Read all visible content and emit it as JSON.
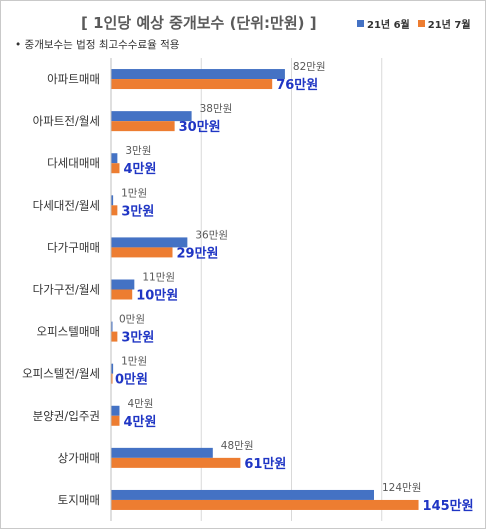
{
  "chart_data": {
    "type": "bar",
    "orientation": "horizontal",
    "title": "[ 1인당 예상 중개보수 (단위:만원) ]",
    "note": "중개보수는 법정 최고수수료율 적용",
    "categories": [
      "아파트매매",
      "아파트전/월세",
      "다세대매매",
      "다세대전/월세",
      "다가구매매",
      "다가구전/월세",
      "오피스텔매매",
      "오피스텔전/월세",
      "분양권/입주권",
      "상가매매",
      "토지매매"
    ],
    "series": [
      {
        "name": "21년 6월",
        "color": "#4472c4",
        "values": [
          82,
          38,
          3,
          1,
          36,
          11,
          0,
          1,
          4,
          48,
          124
        ],
        "labels": [
          "82만원",
          "38만원",
          "3만원",
          "1만원",
          "36만원",
          "11만원",
          "0만원",
          "1만원",
          "4만원",
          "48만원",
          "124만원"
        ]
      },
      {
        "name": "21년 7월",
        "color": "#ed7d31",
        "values": [
          76,
          30,
          4,
          3,
          29,
          10,
          3,
          0,
          4,
          61,
          145
        ],
        "labels": [
          "76만원",
          "30만원",
          "4만원",
          "3만원",
          "29만원",
          "10만원",
          "3만원",
          "0만원",
          "4만원",
          "61만원",
          "145만원"
        ]
      }
    ],
    "xlim": [
      0,
      150
    ],
    "grid": true,
    "legend_position": "top-right"
  }
}
